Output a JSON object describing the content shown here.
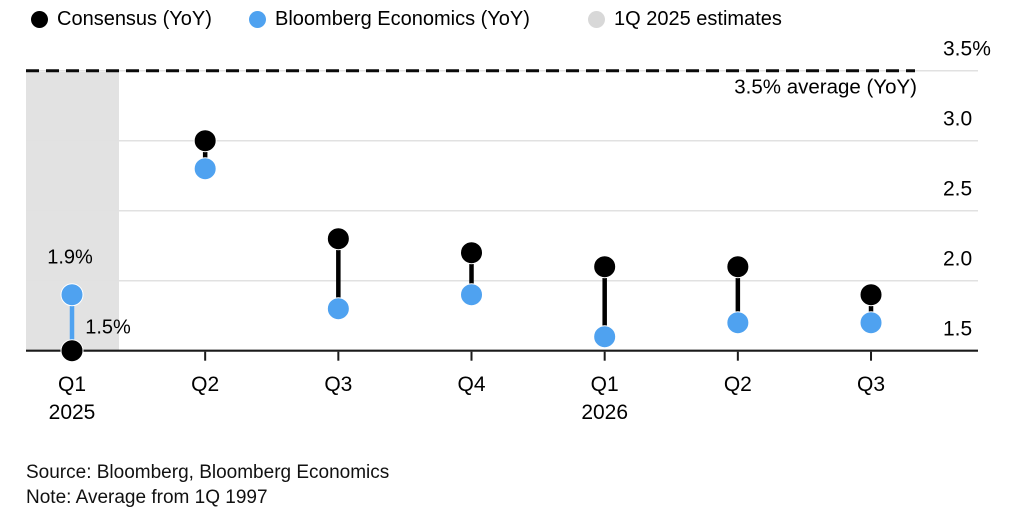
{
  "legend": {
    "items": [
      {
        "label": "Consensus (YoY)",
        "color": "#000000"
      },
      {
        "label": "Bloomberg Economics (YoY)",
        "color": "#4FA2F0"
      },
      {
        "label": "1Q 2025 estimates",
        "color": "#D8D8D8"
      }
    ]
  },
  "chart_data": {
    "type": "dumbbell-scatter",
    "categories": [
      {
        "quarter": "Q1",
        "year": "2025"
      },
      {
        "quarter": "Q2"
      },
      {
        "quarter": "Q3"
      },
      {
        "quarter": "Q4"
      },
      {
        "quarter": "Q1",
        "year": "2026"
      },
      {
        "quarter": "Q2"
      },
      {
        "quarter": "Q3"
      }
    ],
    "series": [
      {
        "name": "Consensus (YoY)",
        "color": "#000000",
        "values": [
          1.5,
          3.0,
          2.3,
          2.2,
          2.1,
          2.1,
          1.9
        ]
      },
      {
        "name": "Bloomberg Economics (YoY)",
        "color": "#4FA2F0",
        "values": [
          1.9,
          2.8,
          1.8,
          1.9,
          1.6,
          1.7,
          1.7
        ]
      }
    ],
    "ylim": [
      1.5,
      3.5
    ],
    "yticks": [
      {
        "value": 3.5,
        "label": "3.5%"
      },
      {
        "value": 3.0,
        "label": "3.0"
      },
      {
        "value": 2.5,
        "label": "2.5"
      },
      {
        "value": 2.0,
        "label": "2.0"
      },
      {
        "value": 1.5,
        "label": "1.5"
      }
    ],
    "average_line": {
      "value": 3.5,
      "label": "3.5% average (YoY)",
      "style": "dashed"
    },
    "shaded_region": {
      "category_index": 0,
      "label": "1Q 2025 estimates",
      "color": "#E2E2E2"
    },
    "point_labels": [
      {
        "series": "Bloomberg Economics (YoY)",
        "category_index": 0,
        "text": "1.9%"
      },
      {
        "series": "Consensus (YoY)",
        "category_index": 0,
        "text": "1.5%"
      }
    ],
    "grid": "horizontal",
    "legend_position": "top"
  },
  "footer": {
    "source": "Source: Bloomberg, Bloomberg Economics",
    "note": "Note: Average from 1Q 1997"
  },
  "colors": {
    "background": "#FFFFFF",
    "gridline": "#E1E1E1",
    "axis": "#1A1A1A",
    "dashed_line": "#0A0A0A",
    "text": "#000000"
  }
}
